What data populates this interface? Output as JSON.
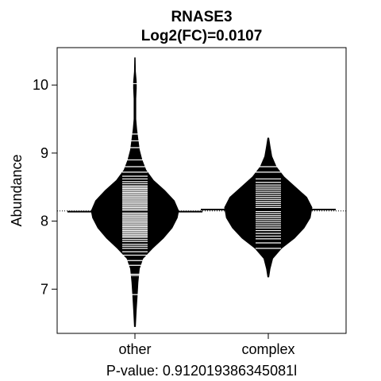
{
  "chart_data": {
    "type": "beanplot",
    "title": "RNASE3",
    "subtitle": "Log2(FC)=0.0107",
    "ylabel": "Abundance",
    "xlabel": "P-value: 0.912019386345081l",
    "ylim": [
      6.35,
      10.55
    ],
    "yticks": [
      7,
      8,
      9,
      10
    ],
    "overall_mean": 8.15,
    "groups": [
      {
        "name": "other",
        "mean": 8.14,
        "density": [
          [
            6.45,
            0.01
          ],
          [
            6.7,
            0.03
          ],
          [
            6.9,
            0.05
          ],
          [
            7.1,
            0.07
          ],
          [
            7.3,
            0.1
          ],
          [
            7.45,
            0.18
          ],
          [
            7.6,
            0.4
          ],
          [
            7.75,
            0.65
          ],
          [
            7.9,
            0.85
          ],
          [
            8.05,
            0.97
          ],
          [
            8.15,
            1.0
          ],
          [
            8.3,
            0.9
          ],
          [
            8.45,
            0.68
          ],
          [
            8.6,
            0.42
          ],
          [
            8.75,
            0.25
          ],
          [
            8.9,
            0.16
          ],
          [
            9.05,
            0.1
          ],
          [
            9.2,
            0.07
          ],
          [
            9.35,
            0.04
          ],
          [
            9.5,
            0.02
          ],
          [
            9.65,
            0.02
          ],
          [
            9.8,
            0.02
          ],
          [
            9.95,
            0.03
          ],
          [
            10.05,
            0.03
          ],
          [
            10.2,
            0.01
          ],
          [
            10.4,
            0.005
          ]
        ],
        "points": [
          6.92,
          7.2,
          7.22,
          7.35,
          7.42,
          7.5,
          7.55,
          7.6,
          7.63,
          7.66,
          7.7,
          7.73,
          7.76,
          7.78,
          7.8,
          7.82,
          7.84,
          7.86,
          7.88,
          7.9,
          7.92,
          7.94,
          7.96,
          7.98,
          8.0,
          8.02,
          8.04,
          8.06,
          8.08,
          8.1,
          8.12,
          8.14,
          8.16,
          8.18,
          8.2,
          8.22,
          8.24,
          8.26,
          8.28,
          8.3,
          8.32,
          8.34,
          8.36,
          8.38,
          8.4,
          8.42,
          8.44,
          8.46,
          8.48,
          8.5,
          8.52,
          8.55,
          8.58,
          8.62,
          8.66,
          8.72,
          8.8,
          8.9,
          9.08,
          9.18,
          9.28,
          10.02
        ]
      },
      {
        "name": "complex",
        "mean": 8.17,
        "density": [
          [
            7.18,
            0.01
          ],
          [
            7.3,
            0.04
          ],
          [
            7.45,
            0.1
          ],
          [
            7.6,
            0.3
          ],
          [
            7.75,
            0.6
          ],
          [
            7.9,
            0.82
          ],
          [
            8.05,
            0.96
          ],
          [
            8.2,
            1.0
          ],
          [
            8.35,
            0.88
          ],
          [
            8.5,
            0.62
          ],
          [
            8.65,
            0.36
          ],
          [
            8.8,
            0.18
          ],
          [
            8.95,
            0.08
          ],
          [
            9.1,
            0.04
          ],
          [
            9.22,
            0.01
          ]
        ],
        "points": [
          7.6,
          7.68,
          7.74,
          7.78,
          7.82,
          7.86,
          7.9,
          7.93,
          7.96,
          7.99,
          8.02,
          8.05,
          8.08,
          8.11,
          8.14,
          8.17,
          8.2,
          8.23,
          8.26,
          8.29,
          8.32,
          8.35,
          8.38,
          8.41,
          8.44,
          8.47,
          8.5,
          8.53,
          8.57,
          8.62,
          8.72,
          8.8
        ]
      }
    ]
  }
}
